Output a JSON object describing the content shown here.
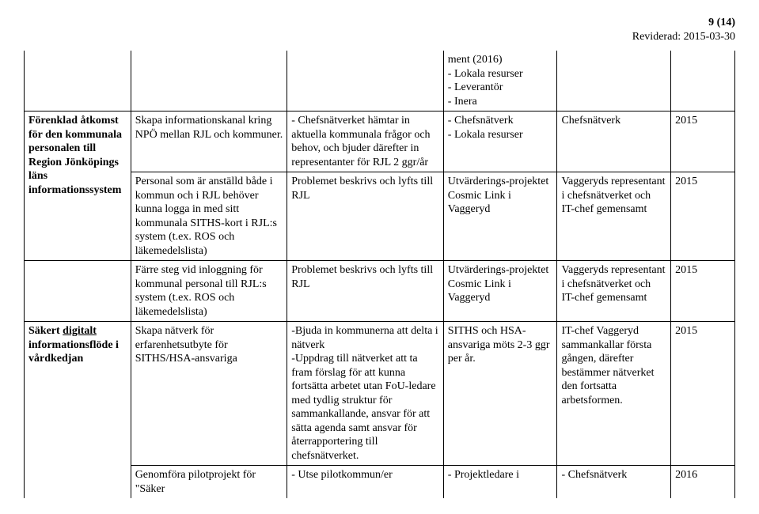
{
  "header": {
    "page_num": "9 (14)",
    "revised": "Reviderad: 2015-03-30"
  },
  "rows": [
    {
      "c1": "",
      "c2": "",
      "c3": "",
      "c4": "ment (2016)\n- Lokala resurser\n- Leverantör\n- Inera",
      "c5": "",
      "c6": ""
    },
    {
      "c1": "",
      "c2": "Skapa informationskanal kring NPÖ mellan RJL och kommuner.",
      "c3": "- Chefsnätverket hämtar in aktuella kommunala frågor och behov, och bjuder därefter in representanter för RJL 2 ggr/år",
      "c4": "- Chefsnätverk\n- Lokala resurser",
      "c5": "Chefsnätverk",
      "c6": "2015"
    },
    {
      "c1": "Förenklad åtkomst för den kommunala personalen till Region Jönköpings läns informationssystem",
      "c2": "Personal som är anställd både i kommun och i RJL behöver kunna logga in med sitt kommunala SITHS-kort i RJL:s system (t.ex. ROS och läkemedelslista)",
      "c3": "Problemet beskrivs och lyfts till RJL",
      "c4": "Utvärderings-projektet Cosmic Link i Vaggeryd",
      "c5": "Vaggeryds representant i chefsnätverket och IT-chef gemensamt",
      "c6": "2015"
    },
    {
      "c1": "",
      "c2": "Färre steg vid inloggning för kommunal personal till RJL:s system (t.ex. ROS och läkemedelslista)",
      "c3": "Problemet beskrivs och lyfts till RJL",
      "c4": "Utvärderings-projektet Cosmic Link i Vaggeryd",
      "c5": "Vaggeryds representant i chefsnätverket och IT-chef gemensamt",
      "c6": "2015"
    },
    {
      "c1_pre": "Säkert ",
      "c1_underline": "digitalt",
      "c1_post": " informationsflöde i vårdkedjan",
      "c2": "Skapa nätverk för erfarenhetsutbyte för SITHS/HSA-ansvariga",
      "c3": "-Bjuda in kommunerna att delta i nätverk\n-Uppdrag till nätverket att ta fram förslag för att kunna fortsätta arbetet utan FoU-ledare med tydlig struktur för sammankallande, ansvar för att sätta agenda samt ansvar för återrapportering till chefsnätverket.",
      "c4": "SITHS och HSA-ansvariga möts 2-3 ggr per år.",
      "c5": "IT-chef Vaggeryd sammankallar första gången, därefter bestämmer nätverket den fortsatta arbetsformen.",
      "c6": "2015"
    },
    {
      "c1": "",
      "c2": "Genomföra pilotprojekt för \"Säker",
      "c3": "- Utse pilotkommun/er",
      "c4": "- Projektledare i",
      "c5": "- Chefsnätverk",
      "c6": "2016"
    }
  ]
}
